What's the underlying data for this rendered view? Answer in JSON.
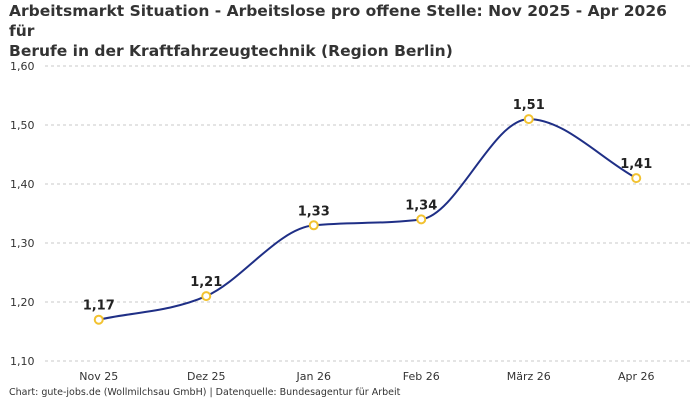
{
  "chart_data": {
    "type": "line",
    "title_lines": [
      "Arbeitsmarkt Situation - Arbeitslose pro offene Stelle: Nov 2025 - Apr 2026 für",
      "Berufe in der Kraftfahrzeugtechnik (Region Berlin)"
    ],
    "categories": [
      "Nov 25",
      "Dez 25",
      "Jan 26",
      "Feb 26",
      "März 26",
      "Apr 26"
    ],
    "values": [
      1.17,
      1.21,
      1.33,
      1.34,
      1.51,
      1.41
    ],
    "value_labels": [
      "1,17",
      "1,21",
      "1,33",
      "1,34",
      "1,51",
      "1,41"
    ],
    "ylim": [
      1.1,
      1.6
    ],
    "yticks": [
      1.1,
      1.2,
      1.3,
      1.4,
      1.5,
      1.6
    ],
    "ytick_labels": [
      "1,10",
      "1,20",
      "1,30",
      "1,40",
      "1,50",
      "1,60"
    ],
    "grid": true,
    "line_color": "#1f2f86",
    "marker_color": "#f2c230",
    "grid_color": "#c8c8c8"
  },
  "footer": {
    "source": "Chart: gute-jobs.de (Wollmilchsau GmbH) | Datenquelle: Bundesagentur für Arbeit"
  }
}
